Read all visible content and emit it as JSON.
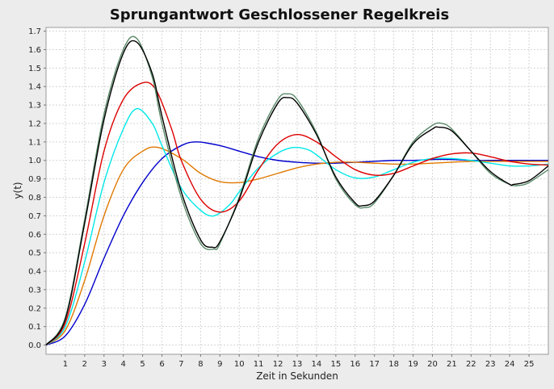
{
  "chart_data": {
    "type": "line",
    "title": "Sprungantwort Geschlossener Regelkreis",
    "xlabel": "Zeit in Sekunden",
    "ylabel": "y(t)",
    "xlim": [
      0,
      26
    ],
    "ylim": [
      -0.05,
      1.72
    ],
    "x_ticks": [
      1,
      2,
      3,
      4,
      5,
      6,
      7,
      8,
      9,
      10,
      11,
      12,
      13,
      14,
      15,
      16,
      17,
      18,
      19,
      20,
      21,
      22,
      23,
      24,
      25
    ],
    "y_ticks": [
      0.0,
      0.1,
      0.2,
      0.3,
      0.4,
      0.5,
      0.6,
      0.7,
      0.8,
      0.9,
      1.0,
      1.1,
      1.2,
      1.3,
      1.4,
      1.5,
      1.6,
      1.7
    ],
    "grid": true,
    "legend": "none",
    "series": [
      {
        "color": "#0000cc",
        "x": [
          0,
          1,
          2,
          3,
          4,
          5,
          6,
          7,
          7.8,
          9,
          10,
          11,
          12,
          13,
          14,
          15,
          16,
          17,
          18,
          19,
          20,
          21,
          22,
          23,
          24,
          25,
          26
        ],
        "y": [
          0,
          0.05,
          0.22,
          0.47,
          0.7,
          0.88,
          1.01,
          1.08,
          1.1,
          1.08,
          1.05,
          1.02,
          1.0,
          0.99,
          0.985,
          0.985,
          0.99,
          0.995,
          1.0,
          1.0,
          1.005,
          1.005,
          1.0,
          1.0,
          1.0,
          1.0,
          1.0
        ]
      },
      {
        "color": "#e07800",
        "x": [
          0,
          1,
          2,
          3,
          4,
          5,
          5.8,
          7,
          8,
          9,
          10,
          11,
          12,
          13,
          14,
          15,
          16,
          17,
          18,
          19,
          20,
          21,
          22,
          23,
          24,
          25,
          26
        ],
        "y": [
          0,
          0.08,
          0.35,
          0.7,
          0.95,
          1.05,
          1.07,
          1.01,
          0.93,
          0.885,
          0.88,
          0.9,
          0.93,
          0.96,
          0.98,
          0.99,
          0.99,
          0.985,
          0.98,
          0.98,
          0.985,
          0.99,
          0.995,
          0.995,
          0.995,
          0.995,
          0.995
        ]
      },
      {
        "color": "#00e8e8",
        "x": [
          0,
          1,
          2,
          3,
          4,
          4.7,
          5.5,
          6,
          7,
          8,
          8.7,
          9.5,
          10,
          11,
          12,
          12.8,
          13.5,
          14,
          15,
          16,
          17,
          18,
          19,
          20,
          21,
          22,
          23,
          24,
          25,
          26
        ],
        "y": [
          0,
          0.1,
          0.45,
          0.88,
          1.17,
          1.28,
          1.2,
          1.08,
          0.85,
          0.73,
          0.7,
          0.76,
          0.83,
          0.96,
          1.04,
          1.07,
          1.06,
          1.03,
          0.95,
          0.905,
          0.91,
          0.95,
          0.99,
          1.01,
          1.01,
          1.0,
          0.985,
          0.97,
          0.97,
          0.98
        ]
      },
      {
        "color": "#dd0000",
        "x": [
          0,
          1,
          2,
          3,
          4,
          5,
          5.7,
          6.5,
          7,
          8,
          9,
          10,
          11,
          12,
          13,
          14,
          15,
          16,
          17,
          18,
          19,
          20,
          21,
          22,
          23,
          24,
          25,
          26
        ],
        "y": [
          0,
          0.12,
          0.55,
          1.05,
          1.33,
          1.42,
          1.38,
          1.17,
          1.0,
          0.79,
          0.72,
          0.78,
          0.95,
          1.09,
          1.14,
          1.1,
          1.02,
          0.95,
          0.92,
          0.93,
          0.97,
          1.01,
          1.035,
          1.04,
          1.02,
          0.995,
          0.98,
          0.975
        ]
      },
      {
        "color": "#5a8a6a",
        "x": [
          0,
          1,
          2,
          3,
          4,
          4.7,
          5.5,
          6,
          7,
          8,
          8.7,
          9,
          10,
          11,
          12,
          12.5,
          13,
          14,
          15,
          16,
          16.5,
          17,
          18,
          19,
          20,
          20.5,
          21,
          22,
          23,
          24,
          24.5,
          25,
          26
        ],
        "y": [
          0,
          0.15,
          0.68,
          1.25,
          1.6,
          1.66,
          1.45,
          1.2,
          0.8,
          0.55,
          0.52,
          0.55,
          0.8,
          1.12,
          1.33,
          1.36,
          1.33,
          1.15,
          0.9,
          0.76,
          0.745,
          0.77,
          0.92,
          1.1,
          1.19,
          1.2,
          1.17,
          1.05,
          0.93,
          0.87,
          0.865,
          0.88,
          0.95
        ]
      },
      {
        "color": "#000000",
        "x": [
          0,
          1,
          2,
          3,
          4,
          4.7,
          5.5,
          6,
          7,
          8,
          8.6,
          9,
          10,
          11,
          12,
          12.5,
          13,
          14,
          15,
          16,
          16.4,
          17,
          18,
          19,
          20,
          20.3,
          21,
          22,
          23,
          24,
          24.2,
          25,
          26
        ],
        "y": [
          0,
          0.14,
          0.66,
          1.22,
          1.58,
          1.64,
          1.47,
          1.24,
          0.83,
          0.57,
          0.53,
          0.56,
          0.79,
          1.1,
          1.31,
          1.34,
          1.31,
          1.14,
          0.91,
          0.77,
          0.755,
          0.78,
          0.92,
          1.09,
          1.17,
          1.18,
          1.16,
          1.05,
          0.94,
          0.87,
          0.87,
          0.89,
          0.97
        ]
      }
    ]
  }
}
